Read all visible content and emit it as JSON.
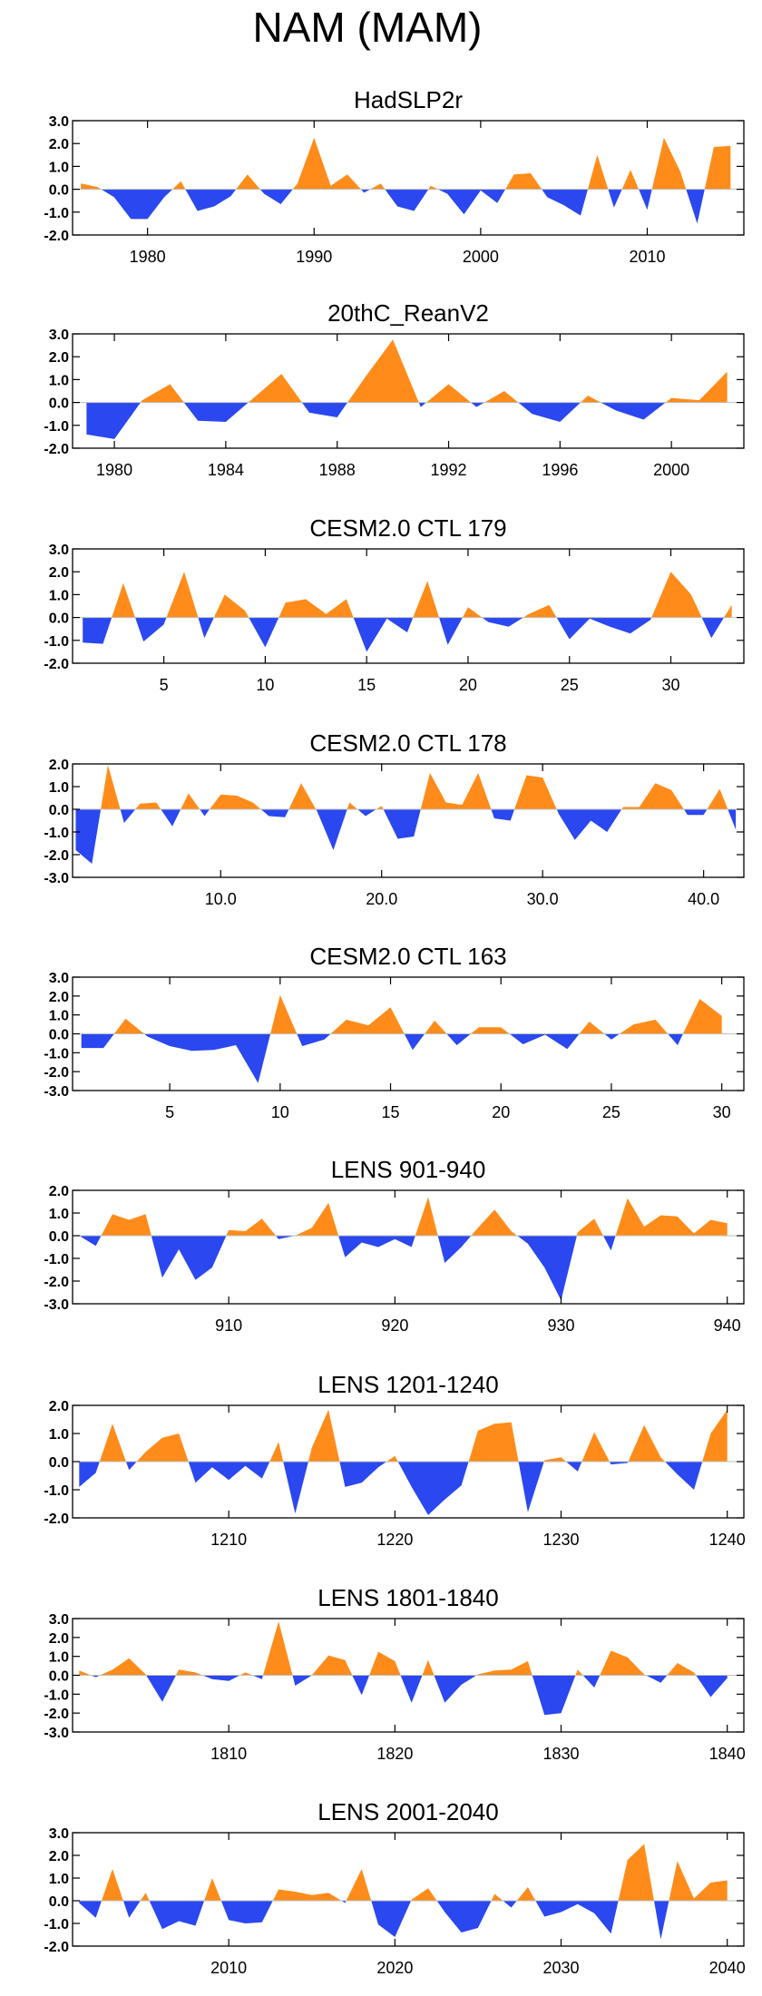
{
  "title": "NAM (MAM)",
  "colors": {
    "positive": "#ff8c1a",
    "negative": "#2a47f0",
    "axis": "#000000",
    "zero_line": "#bdbdbd"
  },
  "chart_data": [
    {
      "type": "area",
      "title": "HadSLP2r",
      "xlim": [
        1975.5,
        2015.8
      ],
      "ylim": [
        -2,
        3
      ],
      "yticks": [
        3.0,
        2.0,
        1.0,
        0.0,
        -1.0,
        -2.0
      ],
      "ytick_labels": [
        "3.0",
        "2.0",
        "1.0",
        "0.0",
        "-1.0",
        "-2.0"
      ],
      "xticks": [
        1980,
        1990,
        2000,
        2010
      ],
      "xtick_labels": [
        "1980",
        "1990",
        "2000",
        "2010"
      ],
      "x": [
        1976,
        1977,
        1978,
        1979,
        1980,
        1981,
        1982,
        1983,
        1984,
        1985,
        1986,
        1987,
        1988,
        1989,
        1990,
        1991,
        1992,
        1993,
        1994,
        1995,
        1996,
        1997,
        1998,
        1999,
        2000,
        2001,
        2002,
        2003,
        2004,
        2005,
        2006,
        2007,
        2008,
        2009,
        2010,
        2011,
        2012,
        2013,
        2014,
        2015
      ],
      "values": [
        0.25,
        0.1,
        -0.35,
        -1.3,
        -1.3,
        -0.35,
        0.35,
        -0.95,
        -0.75,
        -0.3,
        0.65,
        -0.2,
        -0.65,
        0.25,
        2.25,
        0.15,
        0.65,
        -0.15,
        0.25,
        -0.75,
        -0.95,
        0.15,
        -0.2,
        -1.1,
        -0.05,
        -0.6,
        0.65,
        0.7,
        -0.35,
        -0.7,
        -1.15,
        1.5,
        -0.8,
        0.85,
        -0.9,
        2.25,
        0.75,
        -1.5,
        1.85,
        1.9
      ]
    },
    {
      "type": "area",
      "title": "20thC_ReanV2",
      "xlim": [
        1978.5,
        2002.6
      ],
      "ylim": [
        -2,
        3
      ],
      "yticks": [
        3.0,
        2.0,
        1.0,
        0.0,
        -1.0,
        -2.0
      ],
      "ytick_labels": [
        "3.0",
        "2.0",
        "1.0",
        "0.0",
        "-1.0",
        "-2.0"
      ],
      "xticks": [
        1980,
        1984,
        1988,
        1992,
        1996,
        2000
      ],
      "xtick_labels": [
        "1980",
        "1984",
        "1988",
        "1992",
        "1996",
        "2000"
      ],
      "x": [
        1979,
        1980,
        1981,
        1982,
        1983,
        1984,
        1985,
        1986,
        1987,
        1988,
        1989,
        1990,
        1991,
        1992,
        1993,
        1994,
        1995,
        1996,
        1997,
        1998,
        1999,
        2000,
        2001,
        2002
      ],
      "values": [
        -1.4,
        -1.6,
        0.1,
        0.8,
        -0.8,
        -0.85,
        0.2,
        1.25,
        -0.45,
        -0.65,
        1.1,
        2.75,
        -0.2,
        0.8,
        -0.2,
        0.5,
        -0.5,
        -0.85,
        0.3,
        -0.35,
        -0.75,
        0.2,
        0.1,
        1.35
      ]
    },
    {
      "type": "area",
      "title": "CESM2.0 CTL 179",
      "xlim": [
        0.5,
        33.6
      ],
      "ylim": [
        -2,
        3
      ],
      "yticks": [
        3.0,
        2.0,
        1.0,
        0.0,
        -1.0,
        -2.0
      ],
      "ytick_labels": [
        "3.0",
        "2.0",
        "1.0",
        "0.0",
        "-1.0",
        "-2.0"
      ],
      "xticks": [
        5,
        10,
        15,
        20,
        25,
        30
      ],
      "xtick_labels": [
        "5",
        "10",
        "15",
        "20",
        "25",
        "30"
      ],
      "x": [
        1,
        2,
        3,
        4,
        5,
        6,
        7,
        8,
        9,
        10,
        11,
        12,
        13,
        14,
        15,
        16,
        17,
        18,
        19,
        20,
        21,
        22,
        23,
        24,
        25,
        26,
        27,
        28,
        29,
        30,
        31,
        32,
        33
      ],
      "values": [
        -1.1,
        -1.15,
        1.5,
        -1.05,
        -0.3,
        2.0,
        -0.9,
        1.0,
        0.3,
        -1.3,
        0.65,
        0.8,
        0.15,
        0.8,
        -1.5,
        -0.05,
        -0.65,
        1.6,
        -1.2,
        0.45,
        -0.2,
        -0.4,
        0.15,
        0.55,
        -0.95,
        -0.05,
        -0.4,
        -0.7,
        -0.1,
        2.0,
        1.0,
        -0.9,
        0.55
      ]
    },
    {
      "type": "area",
      "title": "CESM2.0 CTL 178",
      "xlim": [
        0.8,
        42.5
      ],
      "ylim": [
        -3,
        2
      ],
      "yticks": [
        2.0,
        1.0,
        0.0,
        -1.0,
        -2.0,
        -3.0
      ],
      "ytick_labels": [
        "2.0",
        "1.0",
        "0.0",
        "-1.0",
        "-2.0",
        "-3.0"
      ],
      "xticks": [
        10,
        20,
        30,
        40
      ],
      "xtick_labels": [
        "10.0",
        "20.0",
        "30.0",
        "40.0"
      ],
      "x": [
        1,
        2,
        3,
        4,
        5,
        6,
        7,
        8,
        9,
        10,
        11,
        12,
        13,
        14,
        15,
        16,
        17,
        18,
        19,
        20,
        21,
        22,
        23,
        24,
        25,
        26,
        27,
        28,
        29,
        30,
        31,
        32,
        33,
        34,
        35,
        36,
        37,
        38,
        39,
        40,
        41,
        42
      ],
      "values": [
        -1.8,
        -2.4,
        1.95,
        -0.6,
        0.25,
        0.3,
        -0.75,
        0.7,
        -0.3,
        0.65,
        0.6,
        0.3,
        -0.3,
        -0.35,
        1.15,
        -0.1,
        -1.8,
        0.3,
        -0.3,
        0.15,
        -1.3,
        -1.2,
        1.6,
        0.3,
        0.2,
        1.6,
        -0.4,
        -0.5,
        1.5,
        1.4,
        -0.2,
        -1.35,
        -0.5,
        -1.0,
        0.1,
        0.1,
        1.15,
        0.85,
        -0.25,
        -0.25,
        0.9,
        -0.9
      ]
    },
    {
      "type": "area",
      "title": "CESM2.0 CTL 163",
      "xlim": [
        0.6,
        31.0
      ],
      "ylim": [
        -3,
        3
      ],
      "yticks": [
        3.0,
        2.0,
        1.0,
        0.0,
        -1.0,
        -2.0,
        -3.0
      ],
      "ytick_labels": [
        "3.0",
        "2.0",
        "1.0",
        "0.0",
        "-1.0",
        "-2.0",
        "-3.0"
      ],
      "xticks": [
        5,
        10,
        15,
        20,
        25,
        30
      ],
      "xtick_labels": [
        "5",
        "10",
        "15",
        "20",
        "25",
        "30"
      ],
      "x": [
        1,
        2,
        3,
        4,
        5,
        6,
        7,
        8,
        9,
        10,
        11,
        12,
        13,
        14,
        15,
        16,
        17,
        18,
        19,
        20,
        21,
        22,
        23,
        24,
        25,
        26,
        27,
        28,
        29,
        30
      ],
      "values": [
        -0.75,
        -0.75,
        0.8,
        -0.15,
        -0.65,
        -0.9,
        -0.85,
        -0.6,
        -2.6,
        2.05,
        -0.65,
        -0.3,
        0.75,
        0.45,
        1.4,
        -0.85,
        0.7,
        -0.6,
        0.35,
        0.35,
        -0.55,
        -0.05,
        -0.8,
        0.65,
        -0.3,
        0.5,
        0.75,
        -0.6,
        1.85,
        0.95
      ]
    },
    {
      "type": "area",
      "title": "LENS 901-940",
      "xlim": [
        900.6,
        941.0
      ],
      "ylim": [
        -3,
        2
      ],
      "yticks": [
        2.0,
        1.0,
        0.0,
        -1.0,
        -2.0,
        -3.0
      ],
      "ytick_labels": [
        "2.0",
        "1.0",
        "0.0",
        "-1.0",
        "-2.0",
        "-3.0"
      ],
      "xticks": [
        910,
        920,
        930,
        940
      ],
      "xtick_labels": [
        "910",
        "920",
        "930",
        "940"
      ],
      "x": [
        901,
        902,
        903,
        904,
        905,
        906,
        907,
        908,
        909,
        910,
        911,
        912,
        913,
        914,
        915,
        916,
        917,
        918,
        919,
        920,
        921,
        922,
        923,
        924,
        925,
        926,
        927,
        928,
        929,
        930,
        931,
        932,
        933,
        934,
        935,
        936,
        937,
        938,
        939,
        940
      ],
      "values": [
        0.0,
        -0.45,
        0.95,
        0.7,
        0.95,
        -1.85,
        -0.6,
        -1.95,
        -1.4,
        0.25,
        0.2,
        0.75,
        -0.15,
        0.0,
        0.35,
        1.45,
        -0.95,
        -0.3,
        -0.5,
        -0.15,
        -0.5,
        1.7,
        -1.2,
        -0.5,
        0.35,
        1.15,
        0.2,
        -0.35,
        -1.4,
        -2.85,
        0.15,
        0.75,
        -0.65,
        1.65,
        0.4,
        0.9,
        0.85,
        0.1,
        0.7,
        0.55
      ]
    },
    {
      "type": "area",
      "title": "LENS 1201-1240",
      "xlim": [
        1200.6,
        1241.0
      ],
      "ylim": [
        -2,
        2
      ],
      "yticks": [
        2.0,
        1.0,
        0.0,
        -1.0,
        -2.0
      ],
      "ytick_labels": [
        "2.0",
        "1.0",
        "0.0",
        "-1.0",
        "-2.0"
      ],
      "xticks": [
        1210,
        1220,
        1230,
        1240
      ],
      "xtick_labels": [
        "1210",
        "1220",
        "1230",
        "1240"
      ],
      "x": [
        1201,
        1202,
        1203,
        1204,
        1205,
        1206,
        1207,
        1208,
        1209,
        1210,
        1211,
        1212,
        1213,
        1214,
        1215,
        1216,
        1217,
        1218,
        1219,
        1220,
        1221,
        1222,
        1223,
        1224,
        1225,
        1226,
        1227,
        1228,
        1229,
        1230,
        1231,
        1232,
        1233,
        1234,
        1235,
        1236,
        1237,
        1238,
        1239,
        1240
      ],
      "values": [
        -0.9,
        -0.4,
        1.35,
        -0.3,
        0.35,
        0.85,
        1.0,
        -0.75,
        -0.2,
        -0.65,
        -0.15,
        -0.6,
        0.7,
        -1.85,
        0.5,
        1.85,
        -0.9,
        -0.75,
        -0.2,
        0.2,
        -0.9,
        -1.9,
        -1.35,
        -0.85,
        1.1,
        1.35,
        1.4,
        -1.8,
        0.05,
        0.15,
        -0.35,
        1.05,
        -0.1,
        -0.05,
        1.3,
        0.15,
        -0.45,
        -1.0,
        1.0,
        1.85
      ]
    },
    {
      "type": "area",
      "title": "LENS 1801-1840",
      "xlim": [
        1800.6,
        1841.0
      ],
      "ylim": [
        -3,
        3
      ],
      "yticks": [
        3.0,
        2.0,
        1.0,
        0.0,
        -1.0,
        -2.0,
        -3.0
      ],
      "ytick_labels": [
        "3.0",
        "2.0",
        "1.0",
        "0.0",
        "-1.0",
        "-2.0",
        "-3.0"
      ],
      "xticks": [
        1810,
        1820,
        1830,
        1840
      ],
      "xtick_labels": [
        "1810",
        "1820",
        "1830",
        "1840"
      ],
      "x": [
        1801,
        1802,
        1803,
        1804,
        1805,
        1806,
        1807,
        1808,
        1809,
        1810,
        1811,
        1812,
        1813,
        1814,
        1815,
        1816,
        1817,
        1818,
        1819,
        1820,
        1821,
        1822,
        1823,
        1824,
        1825,
        1826,
        1827,
        1828,
        1829,
        1830,
        1831,
        1832,
        1833,
        1834,
        1835,
        1836,
        1837,
        1838,
        1839,
        1840
      ],
      "values": [
        0.25,
        -0.1,
        0.3,
        0.9,
        0.05,
        -1.4,
        0.3,
        0.15,
        -0.2,
        -0.3,
        0.15,
        -0.2,
        2.85,
        -0.55,
        0.0,
        1.05,
        0.8,
        -1.05,
        1.25,
        0.75,
        -1.45,
        0.8,
        -1.45,
        -0.5,
        0.05,
        0.25,
        0.3,
        0.75,
        -2.1,
        -2.0,
        0.3,
        -0.65,
        1.3,
        0.95,
        0.05,
        -0.4,
        0.65,
        0.15,
        -1.15,
        -0.15
      ]
    },
    {
      "type": "area",
      "title": "LENS 2001-2040",
      "xlim": [
        2000.6,
        2041.0
      ],
      "ylim": [
        -2,
        3
      ],
      "yticks": [
        3.0,
        2.0,
        1.0,
        0.0,
        -1.0,
        -2.0
      ],
      "ytick_labels": [
        "3.0",
        "2.0",
        "1.0",
        "0.0",
        "-1.0",
        "-2.0"
      ],
      "xticks": [
        2010,
        2020,
        2030,
        2040
      ],
      "xtick_labels": [
        "2010",
        "2020",
        "2030",
        "2040"
      ],
      "x": [
        2001,
        2002,
        2003,
        2004,
        2005,
        2006,
        2007,
        2008,
        2009,
        2010,
        2011,
        2012,
        2013,
        2014,
        2015,
        2016,
        2017,
        2018,
        2019,
        2020,
        2021,
        2022,
        2023,
        2024,
        2025,
        2026,
        2027,
        2028,
        2029,
        2030,
        2031,
        2032,
        2033,
        2034,
        2035,
        2036,
        2037,
        2038,
        2039,
        2040
      ],
      "values": [
        -0.1,
        -0.75,
        1.4,
        -0.75,
        0.35,
        -1.25,
        -0.9,
        -1.1,
        1.0,
        -0.85,
        -1.0,
        -0.95,
        0.5,
        0.4,
        0.25,
        0.35,
        -0.1,
        1.4,
        -1.05,
        -1.6,
        0.05,
        0.55,
        -0.5,
        -1.4,
        -1.2,
        0.3,
        -0.3,
        0.6,
        -0.7,
        -0.5,
        -0.15,
        -0.55,
        -1.45,
        1.8,
        2.5,
        -1.7,
        1.75,
        0.1,
        0.8,
        0.9
      ]
    }
  ]
}
